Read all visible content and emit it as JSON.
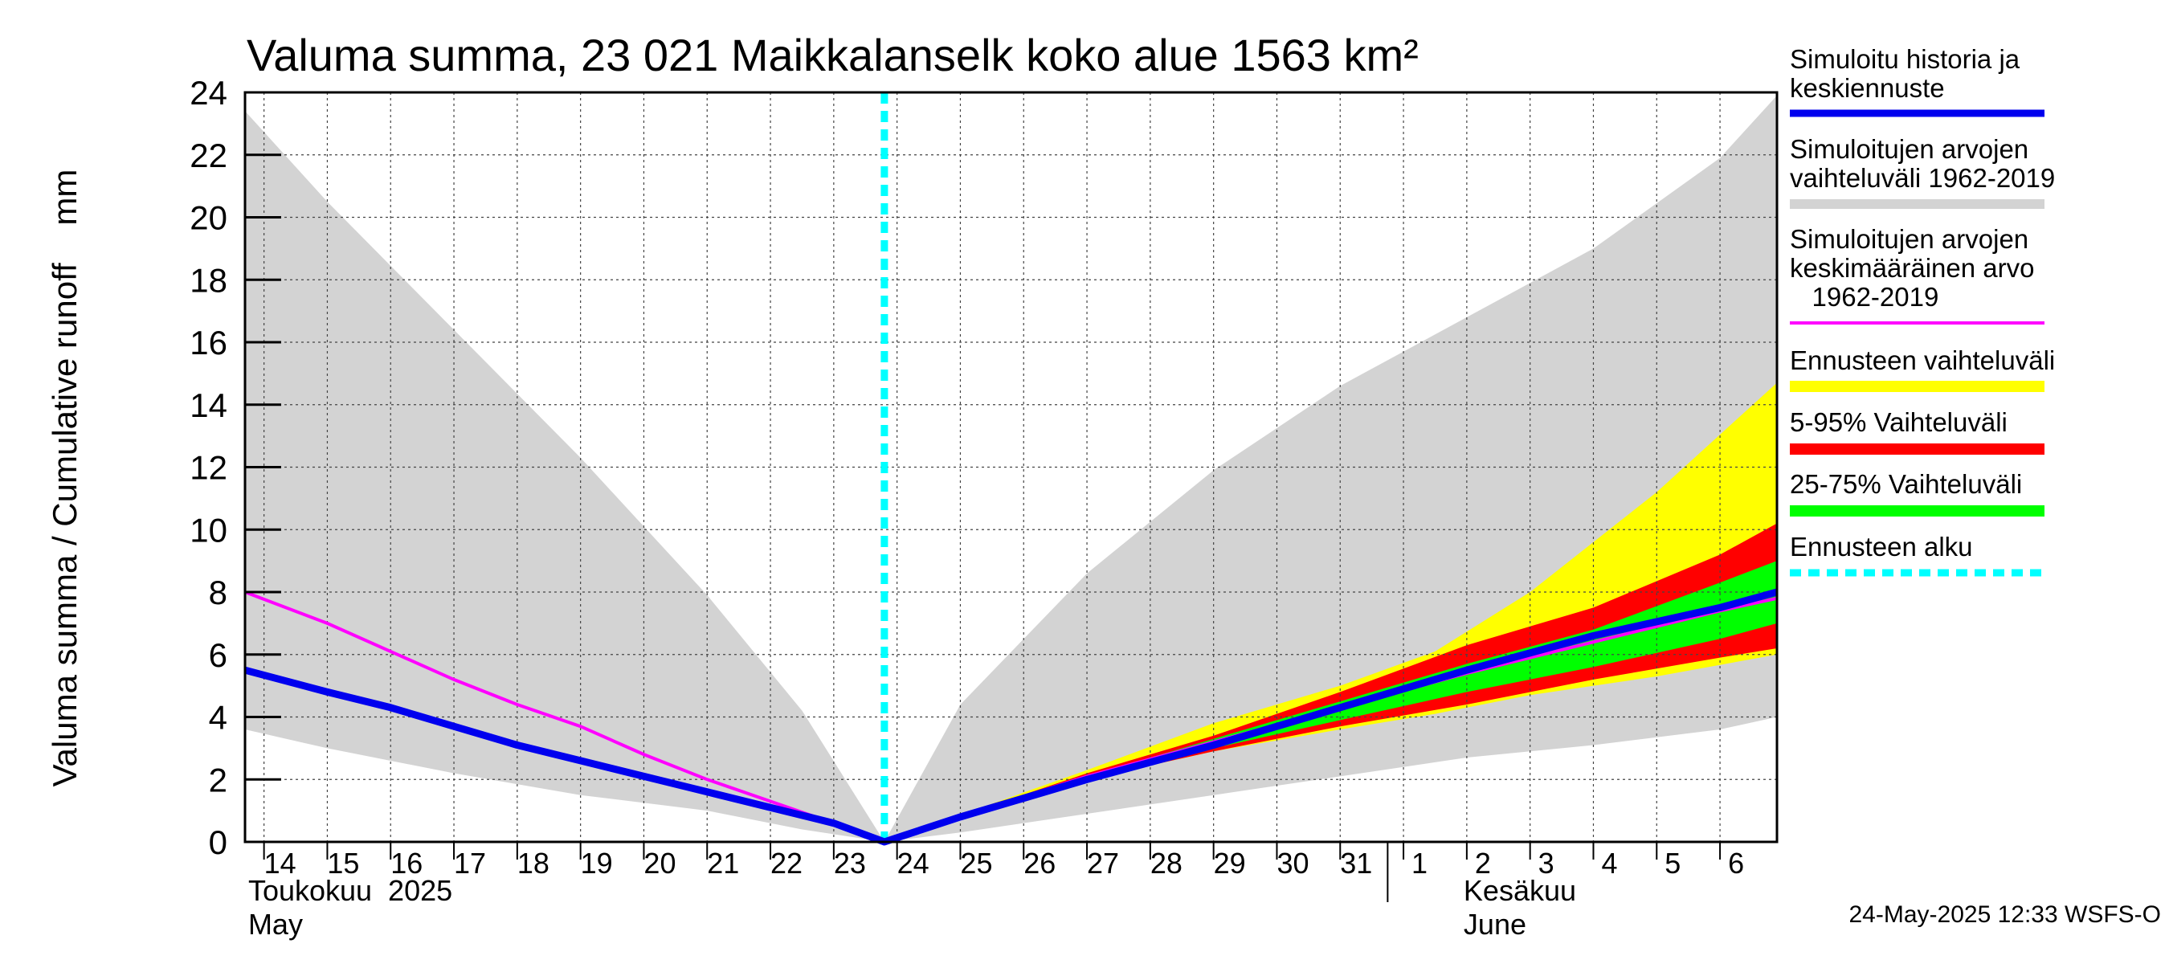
{
  "chart_data": {
    "type": "area",
    "title": "Valuma summa, 23 021 Maikkalanselk koko alue 1563 km²",
    "ylabel": "Valuma summa / Cumulative runoff    mm",
    "ylim": [
      0,
      24
    ],
    "yticks": [
      0,
      2,
      4,
      6,
      8,
      10,
      12,
      14,
      16,
      18,
      20,
      22,
      24
    ],
    "x_day_range": [
      13.7,
      37.9
    ],
    "day_labels": [
      {
        "day": 14,
        "label": "14"
      },
      {
        "day": 15,
        "label": "15"
      },
      {
        "day": 16,
        "label": "16"
      },
      {
        "day": 17,
        "label": "17"
      },
      {
        "day": 18,
        "label": "18"
      },
      {
        "day": 19,
        "label": "19"
      },
      {
        "day": 20,
        "label": "20"
      },
      {
        "day": 21,
        "label": "21"
      },
      {
        "day": 22,
        "label": "22"
      },
      {
        "day": 23,
        "label": "23"
      },
      {
        "day": 24,
        "label": "24"
      },
      {
        "day": 25,
        "label": "25"
      },
      {
        "day": 26,
        "label": "26"
      },
      {
        "day": 27,
        "label": "27"
      },
      {
        "day": 28,
        "label": "28"
      },
      {
        "day": 29,
        "label": "29"
      },
      {
        "day": 30,
        "label": "30"
      },
      {
        "day": 31,
        "label": "31"
      },
      {
        "day": 32,
        "label": "1"
      },
      {
        "day": 33,
        "label": "2"
      },
      {
        "day": 34,
        "label": "3"
      },
      {
        "day": 35,
        "label": "4"
      },
      {
        "day": 36,
        "label": "5"
      },
      {
        "day": 37,
        "label": "6"
      }
    ],
    "month_labels": [
      {
        "day": 13.75,
        "line1": "Toukokuu  2025",
        "line2": "May"
      },
      {
        "day": 32.95,
        "line1": "Kesäkuu",
        "line2": "June"
      }
    ],
    "month_divider_day": 31.75,
    "forecast_start_day": 23.8,
    "range_1962_2019": {
      "name": "Simuloitujen arvojen vaihteluväli 1962-2019",
      "x": [
        13.7,
        15,
        17,
        19,
        21,
        22.5,
        23.8,
        25,
        27,
        29,
        31,
        33,
        35,
        37,
        37.9
      ],
      "upper": [
        23.4,
        20.5,
        16.4,
        12.3,
        7.9,
        4.2,
        0,
        4.4,
        8.6,
        11.9,
        14.6,
        16.8,
        19,
        21.9,
        23.9
      ],
      "lower": [
        3.6,
        3,
        2.2,
        1.5,
        1,
        0.4,
        0,
        0.3,
        0.9,
        1.5,
        2.1,
        2.7,
        3.1,
        3.6,
        4
      ]
    },
    "forecast_range": {
      "name": "Ennusteen vaihteluväli",
      "x": [
        23.8,
        27,
        29,
        31,
        32.5,
        34,
        36,
        37.9
      ],
      "upper": [
        0,
        2.3,
        3.8,
        5,
        6.1,
        8,
        11.2,
        14.7
      ],
      "lower": [
        0,
        2,
        2.9,
        3.6,
        4.1,
        4.7,
        5.3,
        6
      ]
    },
    "band_5_95": {
      "name": "5-95% Vaihteluväli",
      "x": [
        23.8,
        27,
        29,
        31,
        33,
        35,
        37,
        37.9
      ],
      "upper": [
        0,
        2.2,
        3.4,
        4.8,
        6.3,
        7.5,
        9.2,
        10.2
      ],
      "lower": [
        0,
        2,
        2.9,
        3.7,
        4.4,
        5.2,
        5.9,
        6.2
      ]
    },
    "band_25_75": {
      "name": "25-75% Vaihteluväli",
      "x": [
        23.8,
        27,
        29,
        31,
        33,
        35,
        37,
        37.9
      ],
      "upper": [
        0,
        2.1,
        3.3,
        4.5,
        5.7,
        6.8,
        8.3,
        9
      ],
      "lower": [
        0,
        2,
        3,
        3.9,
        4.8,
        5.6,
        6.5,
        7
      ]
    },
    "mean_1962_2019": {
      "name": "Simuloitujen arvojen keskimääräinen arvo 1962-2019",
      "x": [
        13.7,
        15,
        16,
        17,
        18,
        19,
        20,
        21,
        22,
        23,
        23.8,
        25,
        27,
        29,
        31,
        33,
        35,
        37,
        37.9
      ],
      "y": [
        8,
        7,
        6.1,
        5.2,
        4.4,
        3.7,
        2.8,
        2,
        1.3,
        0.6,
        0,
        0.8,
        2.1,
        3.2,
        4.3,
        5.4,
        6.4,
        7.4,
        7.8
      ]
    },
    "simulated_history_forecast": {
      "name": "Simuloitu historia ja keskiennuste",
      "x": [
        13.7,
        15,
        16,
        17,
        18,
        19,
        20,
        21,
        22,
        23,
        23.8,
        25,
        27,
        29,
        31,
        33,
        35,
        37,
        37.9
      ],
      "y": [
        5.5,
        4.8,
        4.3,
        3.7,
        3.1,
        2.6,
        2.1,
        1.6,
        1.1,
        0.6,
        0,
        0.8,
        2,
        3.1,
        4.3,
        5.5,
        6.6,
        7.5,
        8
      ]
    }
  },
  "colors": {
    "history": "#0000ee",
    "range": "#d3d3d3",
    "mean": "#ff00ff",
    "forecast": "#ffff00",
    "band95": "#ff0000",
    "band75": "#00ff00",
    "start": "#00ffff"
  },
  "legend": {
    "history": [
      "Simuloitu historia ja",
      "keskiennuste"
    ],
    "range": [
      "Simuloitujen arvojen",
      "vaihteluväli 1962-2019"
    ],
    "mean": [
      "Simuloitujen arvojen",
      "keskimääräinen arvo",
      "   1962-2019"
    ],
    "forecast": [
      "Ennusteen vaihteluväli"
    ],
    "band95": [
      "5-95% Vaihteluväli"
    ],
    "band75": [
      "25-75% Vaihteluväli"
    ],
    "start": [
      "Ennusteen alku"
    ]
  },
  "footer": "24-May-2025 12:33 WSFS-O"
}
